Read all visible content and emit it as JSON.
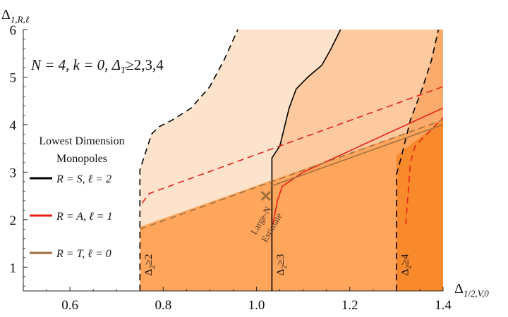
{
  "chart_data": {
    "type": "line",
    "title": "N = 4, k = 0, Δ_T ≥2,3,4",
    "xlabel": "Δ_{1/2,V,0}",
    "ylabel": "Δ_{1,R,ℓ}",
    "xlim": [
      0.5,
      1.4
    ],
    "ylim": [
      0.5,
      6.0
    ],
    "x_ticks": [
      0.6,
      0.8,
      1.0,
      1.2,
      1.4
    ],
    "y_ticks": [
      1,
      2,
      3,
      4,
      5,
      6
    ],
    "x_tick_labels": [
      "0.6",
      "0.8",
      "1.0",
      "1.2",
      "1.4"
    ],
    "y_tick_labels": [
      "1",
      "2",
      "3",
      "4",
      "5",
      "6"
    ],
    "regions": [
      {
        "name": "Δ_2≥2",
        "fill": "#fde3cc",
        "points": [
          [
            0.75,
            0.5
          ],
          [
            0.75,
            3.05
          ],
          [
            0.775,
            3.8
          ],
          [
            0.79,
            3.95
          ],
          [
            0.82,
            4.1
          ],
          [
            0.86,
            4.35
          ],
          [
            0.9,
            4.8
          ],
          [
            0.93,
            5.35
          ],
          [
            0.96,
            6.0
          ],
          [
            1.4,
            6.0
          ],
          [
            1.4,
            0.5
          ]
        ]
      },
      {
        "name": "Δ_2≥3",
        "fill": "#fcca9e",
        "points": [
          [
            1.033,
            0.5
          ],
          [
            1.033,
            3.3
          ],
          [
            1.05,
            3.55
          ],
          [
            1.07,
            4.35
          ],
          [
            1.085,
            4.75
          ],
          [
            1.11,
            5.0
          ],
          [
            1.14,
            5.25
          ],
          [
            1.16,
            5.6
          ],
          [
            1.18,
            6.0
          ],
          [
            1.4,
            6.0
          ],
          [
            1.4,
            0.5
          ]
        ]
      },
      {
        "name": "Δ_2≥4",
        "fill": "#fbab6c",
        "points": [
          [
            1.3,
            0.5
          ],
          [
            1.3,
            2.95
          ],
          [
            1.31,
            3.3
          ],
          [
            1.32,
            3.7
          ],
          [
            1.33,
            4.1
          ],
          [
            1.355,
            4.75
          ],
          [
            1.375,
            5.35
          ],
          [
            1.39,
            6.0
          ],
          [
            1.4,
            6.0
          ],
          [
            1.4,
            0.5
          ]
        ]
      },
      {
        "name": "allowed-lower",
        "fill": "#ffa55c",
        "points": [
          [
            0.75,
            0.5
          ],
          [
            0.75,
            1.85
          ],
          [
            1.4,
            4.1
          ],
          [
            1.4,
            0.5
          ]
        ]
      },
      {
        "name": "allowed-core",
        "fill": "#f98a2c",
        "points": [
          [
            1.3,
            0.5
          ],
          [
            1.3,
            3.35
          ],
          [
            1.4,
            4.1
          ],
          [
            1.4,
            0.5
          ]
        ]
      }
    ],
    "series": [
      {
        "color": "#000000",
        "dash": "dashed",
        "points": [
          [
            0.75,
            0.5
          ],
          [
            0.75,
            3.05
          ],
          [
            0.775,
            3.8
          ],
          [
            0.79,
            3.95
          ],
          [
            0.82,
            4.1
          ],
          [
            0.86,
            4.35
          ],
          [
            0.9,
            4.8
          ],
          [
            0.93,
            5.35
          ],
          [
            0.96,
            6.0
          ]
        ]
      },
      {
        "color": "#000000",
        "dash": "solid",
        "points": [
          [
            1.033,
            0.5
          ],
          [
            1.033,
            3.3
          ],
          [
            1.05,
            3.55
          ],
          [
            1.07,
            4.35
          ],
          [
            1.085,
            4.75
          ],
          [
            1.11,
            5.0
          ],
          [
            1.14,
            5.25
          ],
          [
            1.16,
            5.6
          ],
          [
            1.18,
            6.0
          ]
        ]
      },
      {
        "color": "#000000",
        "dash": "dashed",
        "points": [
          [
            1.3,
            0.5
          ],
          [
            1.3,
            2.95
          ],
          [
            1.31,
            3.3
          ],
          [
            1.32,
            3.7
          ],
          [
            1.33,
            4.1
          ],
          [
            1.355,
            4.75
          ],
          [
            1.375,
            5.35
          ],
          [
            1.39,
            6.0
          ]
        ]
      },
      {
        "color": "#e8201a",
        "dash": "dashed",
        "points": [
          [
            0.755,
            2.35
          ],
          [
            0.77,
            2.55
          ],
          [
            1.4,
            4.8
          ]
        ]
      },
      {
        "color": "#e8201a",
        "dash": "solid",
        "points": [
          [
            1.035,
            1.9
          ],
          [
            1.045,
            2.4
          ],
          [
            1.055,
            2.7
          ],
          [
            1.1,
            3.0
          ],
          [
            1.4,
            4.35
          ]
        ]
      },
      {
        "color": "#e8201a",
        "dash": "dashed",
        "points": [
          [
            1.32,
            1.9
          ],
          [
            1.33,
            3.2
          ],
          [
            1.34,
            3.55
          ],
          [
            1.4,
            4.15
          ]
        ]
      },
      {
        "color": "#a0703f",
        "dash": "dashed",
        "points": [
          [
            0.75,
            1.8
          ],
          [
            1.4,
            4.1
          ]
        ]
      },
      {
        "color": "#a0703f",
        "dash": "solid",
        "points": [
          [
            1.03,
            2.7
          ],
          [
            1.4,
            4.0
          ]
        ]
      }
    ],
    "marker": {
      "label": "Large-N Estimate",
      "x": 1.02,
      "y": 2.5,
      "color": "#a0703f",
      "symbol": "×"
    },
    "legend": {
      "title_line1": "Lowest Dimension",
      "title_line2": "Monopoles",
      "items": [
        {
          "label": "R = S, ℓ = 2",
          "color": "#000000"
        },
        {
          "label": "R = A, ℓ = 1",
          "color": "#e8201a"
        },
        {
          "label": "R = T, ℓ = 0",
          "color": "#a0703f"
        }
      ]
    },
    "vertical_labels": [
      {
        "text": "Δ_2≥2",
        "x": 0.76,
        "y": 1.05
      },
      {
        "text": "Δ_2≥3",
        "x": 1.043,
        "y": 1.05
      },
      {
        "text": "Δ_2≥4",
        "x": 1.31,
        "y": 1.05
      }
    ]
  }
}
